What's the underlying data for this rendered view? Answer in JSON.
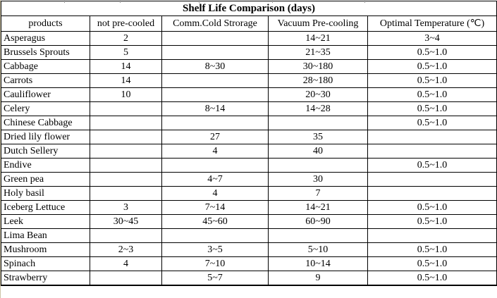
{
  "chart_data": {
    "type": "table",
    "title": "Shelf Life Comparison (days)",
    "columns": [
      "products",
      "not pre-cooled",
      "Comm.Cold Strorage",
      "Vacuum Pre-cooling",
      "Optimal Temperature (℃)"
    ],
    "rows": [
      [
        "Asperagus",
        "2",
        "",
        "14~21",
        "3~4"
      ],
      [
        "Brussels Sprouts",
        "5",
        "",
        "21~35",
        "0.5~1.0"
      ],
      [
        "Cabbage",
        "14",
        "8~30",
        "30~180",
        "0.5~1.0"
      ],
      [
        "Carrots",
        "14",
        "",
        "28~180",
        "0.5~1.0"
      ],
      [
        "Cauliflower",
        "10",
        "",
        "20~30",
        "0.5~1.0"
      ],
      [
        "Celery",
        "",
        "8~14",
        "14~28",
        "0.5~1.0"
      ],
      [
        "Chinese Cabbage",
        "",
        "",
        "",
        "0.5~1.0"
      ],
      [
        "Dried lily flower",
        "",
        "27",
        "35",
        ""
      ],
      [
        "Dutch Sellery",
        "",
        "4",
        "40",
        ""
      ],
      [
        "Endive",
        "",
        "",
        "",
        "0.5~1.0"
      ],
      [
        "Green pea",
        "",
        "4~7",
        "30",
        ""
      ],
      [
        "Holy basil",
        "",
        "4",
        "7",
        ""
      ],
      [
        "Iceberg Lettuce",
        "3",
        "7~14",
        "14~21",
        "0.5~1.0"
      ],
      [
        "Leek",
        "30~45",
        "45~60",
        "60~90",
        "0.5~1.0"
      ],
      [
        "Lima Bean",
        "",
        "",
        "",
        ""
      ],
      [
        "Mushroom",
        "2~3",
        "3~5",
        "5~10",
        "0.5~1.0"
      ],
      [
        "Spinach",
        "4",
        "7~10",
        "10~14",
        "0.5~1.0"
      ],
      [
        "Strawberry",
        "",
        "5~7",
        "9",
        "0.5~1.0"
      ]
    ]
  },
  "colors": {
    "border": "#000000",
    "background": "#ffffff",
    "text": "#000000"
  }
}
